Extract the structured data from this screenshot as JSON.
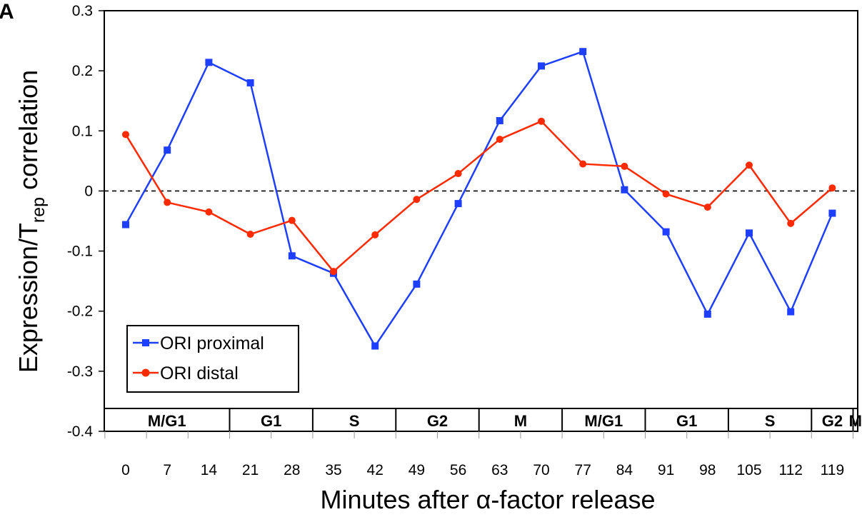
{
  "panel_letter": "A",
  "chart_data": {
    "type": "line",
    "ylabel_main": "Expression/T",
    "ylabel_sub": "rep",
    "ylabel_tail": " correlation",
    "xlabel": "Minutes after α-factor release",
    "ylim": [
      -0.4,
      0.3
    ],
    "yticks": [
      "0.3",
      "0.2",
      "0.1",
      "0",
      "-0.1",
      "-0.2",
      "-0.3",
      "-0.4"
    ],
    "ytick_values": [
      0.3,
      0.2,
      0.1,
      0,
      -0.1,
      -0.2,
      -0.3,
      -0.4
    ],
    "x": [
      0,
      7,
      14,
      21,
      28,
      35,
      42,
      49,
      56,
      63,
      70,
      77,
      84,
      91,
      98,
      105,
      112,
      119
    ],
    "xtick_labels": [
      "0",
      "7",
      "14",
      "21",
      "28",
      "35",
      "42",
      "49",
      "56",
      "63",
      "70",
      "77",
      "84",
      "91",
      "98",
      "105",
      "112",
      "119"
    ],
    "zero_line": "dashed",
    "grid": false,
    "legend_position": "bottom-left",
    "series": [
      {
        "name": "ORI proximal",
        "color": "#1f3fff",
        "marker": "square",
        "values": [
          -0.056,
          0.068,
          0.214,
          0.18,
          -0.108,
          -0.137,
          -0.258,
          -0.155,
          -0.021,
          0.117,
          0.208,
          0.232,
          0.002,
          -0.068,
          -0.205,
          -0.07,
          -0.201,
          -0.037
        ]
      },
      {
        "name": "ORI distal",
        "color": "#ff2a00",
        "marker": "circle",
        "values": [
          0.094,
          -0.019,
          -0.035,
          -0.072,
          -0.049,
          -0.134,
          -0.073,
          -0.014,
          0.029,
          0.086,
          0.116,
          0.045,
          0.041,
          -0.005,
          -0.027,
          0.043,
          -0.054,
          0.005
        ]
      }
    ],
    "phases": [
      {
        "label": "M/G1",
        "start": 0,
        "end": 14
      },
      {
        "label": "G1",
        "start": 14,
        "end": 28
      },
      {
        "label": "S",
        "start": 28,
        "end": 42
      },
      {
        "label": "G2",
        "start": 42,
        "end": 56
      },
      {
        "label": "M",
        "start": 56,
        "end": 70
      },
      {
        "label": "M/G1",
        "start": 70,
        "end": 84
      },
      {
        "label": "G1",
        "start": 84,
        "end": 98
      },
      {
        "label": "S",
        "start": 98,
        "end": 112
      },
      {
        "label": "G2",
        "start": 112,
        "end": 119
      },
      {
        "label": "M",
        "start": 119,
        "end": 126
      }
    ]
  }
}
